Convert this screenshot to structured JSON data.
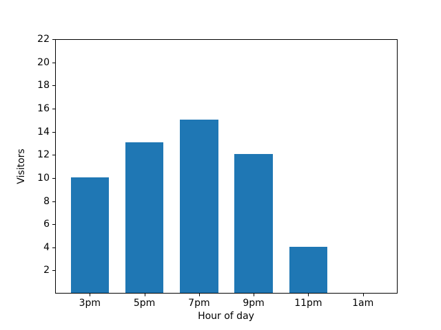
{
  "chart_data": {
    "type": "bar",
    "title": "",
    "xlabel": "Hour of day",
    "ylabel": "Visitors",
    "categories": [
      "3pm",
      "5pm",
      "7pm",
      "9pm",
      "11pm",
      "1am"
    ],
    "values": [
      10,
      13,
      15,
      12,
      4,
      0
    ],
    "yticks": [
      2,
      4,
      6,
      8,
      10,
      12,
      14,
      16,
      18,
      20,
      22
    ],
    "ylim": [
      0,
      22
    ],
    "bar_color": "#1f77b4",
    "axis_color": "#000000",
    "background_color": "#ffffff",
    "grid": false,
    "legend": false
  }
}
